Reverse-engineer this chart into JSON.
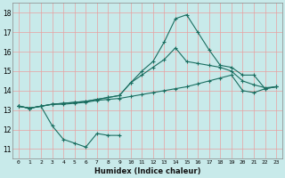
{
  "title": "",
  "xlabel": "Humidex (Indice chaleur)",
  "ylabel": "",
  "bg_color": "#c8eaea",
  "grid_color": "#e8a0a0",
  "line_color": "#1a6e60",
  "xlim": [
    -0.5,
    23.5
  ],
  "ylim": [
    10.5,
    18.5
  ],
  "xticks": [
    0,
    1,
    2,
    3,
    4,
    5,
    6,
    7,
    8,
    9,
    10,
    11,
    12,
    13,
    14,
    15,
    16,
    17,
    18,
    19,
    20,
    21,
    22,
    23
  ],
  "yticks": [
    11,
    12,
    13,
    14,
    15,
    16,
    17,
    18
  ],
  "series": [
    {
      "x": [
        0,
        1,
        2,
        3,
        4,
        5,
        6,
        7,
        8,
        9,
        10,
        11,
        12,
        13,
        14,
        15,
        16,
        17,
        18,
        19,
        20,
        21,
        22,
        23
      ],
      "y": [
        13.2,
        13.1,
        13.2,
        13.3,
        13.3,
        13.35,
        13.4,
        13.5,
        13.55,
        13.6,
        13.7,
        13.8,
        13.9,
        14.0,
        14.1,
        14.2,
        14.35,
        14.5,
        14.65,
        14.8,
        14.0,
        13.9,
        14.1,
        14.2
      ]
    },
    {
      "x": [
        0,
        1,
        2,
        3,
        4,
        5,
        6,
        7,
        8,
        9,
        10,
        11,
        12,
        13,
        14,
        15,
        16,
        17,
        18,
        19,
        20,
        21,
        22,
        23
      ],
      "y": [
        13.2,
        13.1,
        13.2,
        13.3,
        13.35,
        13.4,
        13.45,
        13.55,
        13.65,
        13.75,
        14.4,
        14.8,
        15.2,
        15.6,
        16.2,
        15.5,
        15.4,
        15.3,
        15.2,
        15.0,
        14.5,
        14.3,
        14.15,
        14.2
      ]
    },
    {
      "x": [
        0,
        1,
        2,
        3,
        4,
        5,
        6,
        7,
        8,
        9,
        10,
        11,
        12,
        13,
        14,
        15,
        16,
        17,
        18,
        19,
        20,
        21,
        22,
        23
      ],
      "y": [
        13.2,
        13.1,
        13.2,
        13.3,
        13.35,
        13.4,
        13.45,
        13.55,
        13.65,
        13.75,
        14.4,
        15.0,
        15.5,
        16.5,
        17.7,
        17.9,
        17.0,
        16.1,
        15.3,
        15.2,
        14.8,
        14.8,
        14.1,
        14.2
      ]
    },
    {
      "x": [
        0,
        1,
        2,
        3,
        4,
        5,
        6,
        7,
        8,
        9,
        10,
        11,
        12,
        13,
        14,
        15,
        16,
        17,
        18,
        19,
        20,
        21,
        22,
        23
      ],
      "y": [
        13.2,
        13.1,
        13.2,
        12.2,
        11.5,
        11.3,
        11.1,
        11.8,
        11.7,
        11.7,
        null,
        null,
        null,
        null,
        null,
        null,
        null,
        null,
        null,
        null,
        null,
        null,
        null,
        null
      ]
    }
  ]
}
